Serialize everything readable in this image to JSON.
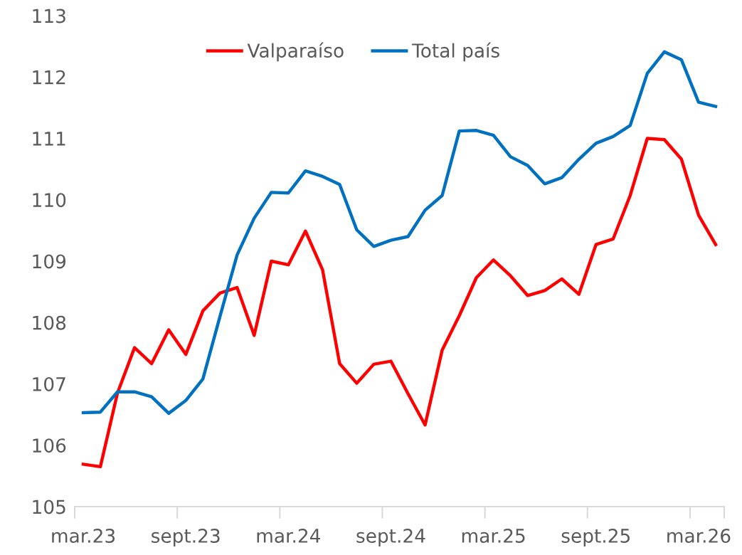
{
  "chart_data": {
    "type": "line",
    "categories": [
      "mar.23",
      null,
      null,
      null,
      null,
      null,
      "sept.23",
      null,
      null,
      null,
      null,
      null,
      "mar.24",
      null,
      null,
      null,
      null,
      null,
      "sept.24",
      null,
      null,
      null,
      null,
      null,
      "mar.25",
      null,
      null,
      null,
      null,
      null,
      "sept.25",
      null,
      null,
      null,
      null,
      null,
      "mar.26",
      null
    ],
    "series": [
      {
        "name": "Valparaíso",
        "color": "#ff0000",
        "values": [
          105.69,
          105.65,
          106.85,
          107.59,
          107.33,
          107.88,
          107.48,
          108.19,
          108.48,
          108.57,
          107.79,
          109.0,
          108.94,
          109.49,
          108.86,
          107.33,
          107.01,
          107.32,
          107.37,
          106.84,
          106.33,
          107.55,
          108.11,
          108.73,
          109.02,
          108.76,
          108.44,
          108.52,
          108.71,
          108.46,
          109.27,
          109.36,
          110.07,
          111.0,
          110.98,
          110.66,
          109.75,
          109.27
        ]
      },
      {
        "name": "Total país",
        "color": "#0070c0",
        "values": [
          106.53,
          106.54,
          106.87,
          106.87,
          106.79,
          106.52,
          106.73,
          107.08,
          108.1,
          109.1,
          109.7,
          110.12,
          110.11,
          110.47,
          110.38,
          110.25,
          109.51,
          109.24,
          109.34,
          109.4,
          109.83,
          110.07,
          111.12,
          111.13,
          111.05,
          110.7,
          110.56,
          110.26,
          110.36,
          110.66,
          110.92,
          111.03,
          111.21,
          112.06,
          112.41,
          112.28,
          111.59,
          111.52
        ]
      }
    ],
    "ylim": [
      105,
      113
    ],
    "yticks": [
      105,
      106,
      107,
      108,
      109,
      110,
      111,
      112,
      113
    ],
    "grid": false,
    "legend": "top",
    "marker": "none",
    "line_style": "solid"
  }
}
